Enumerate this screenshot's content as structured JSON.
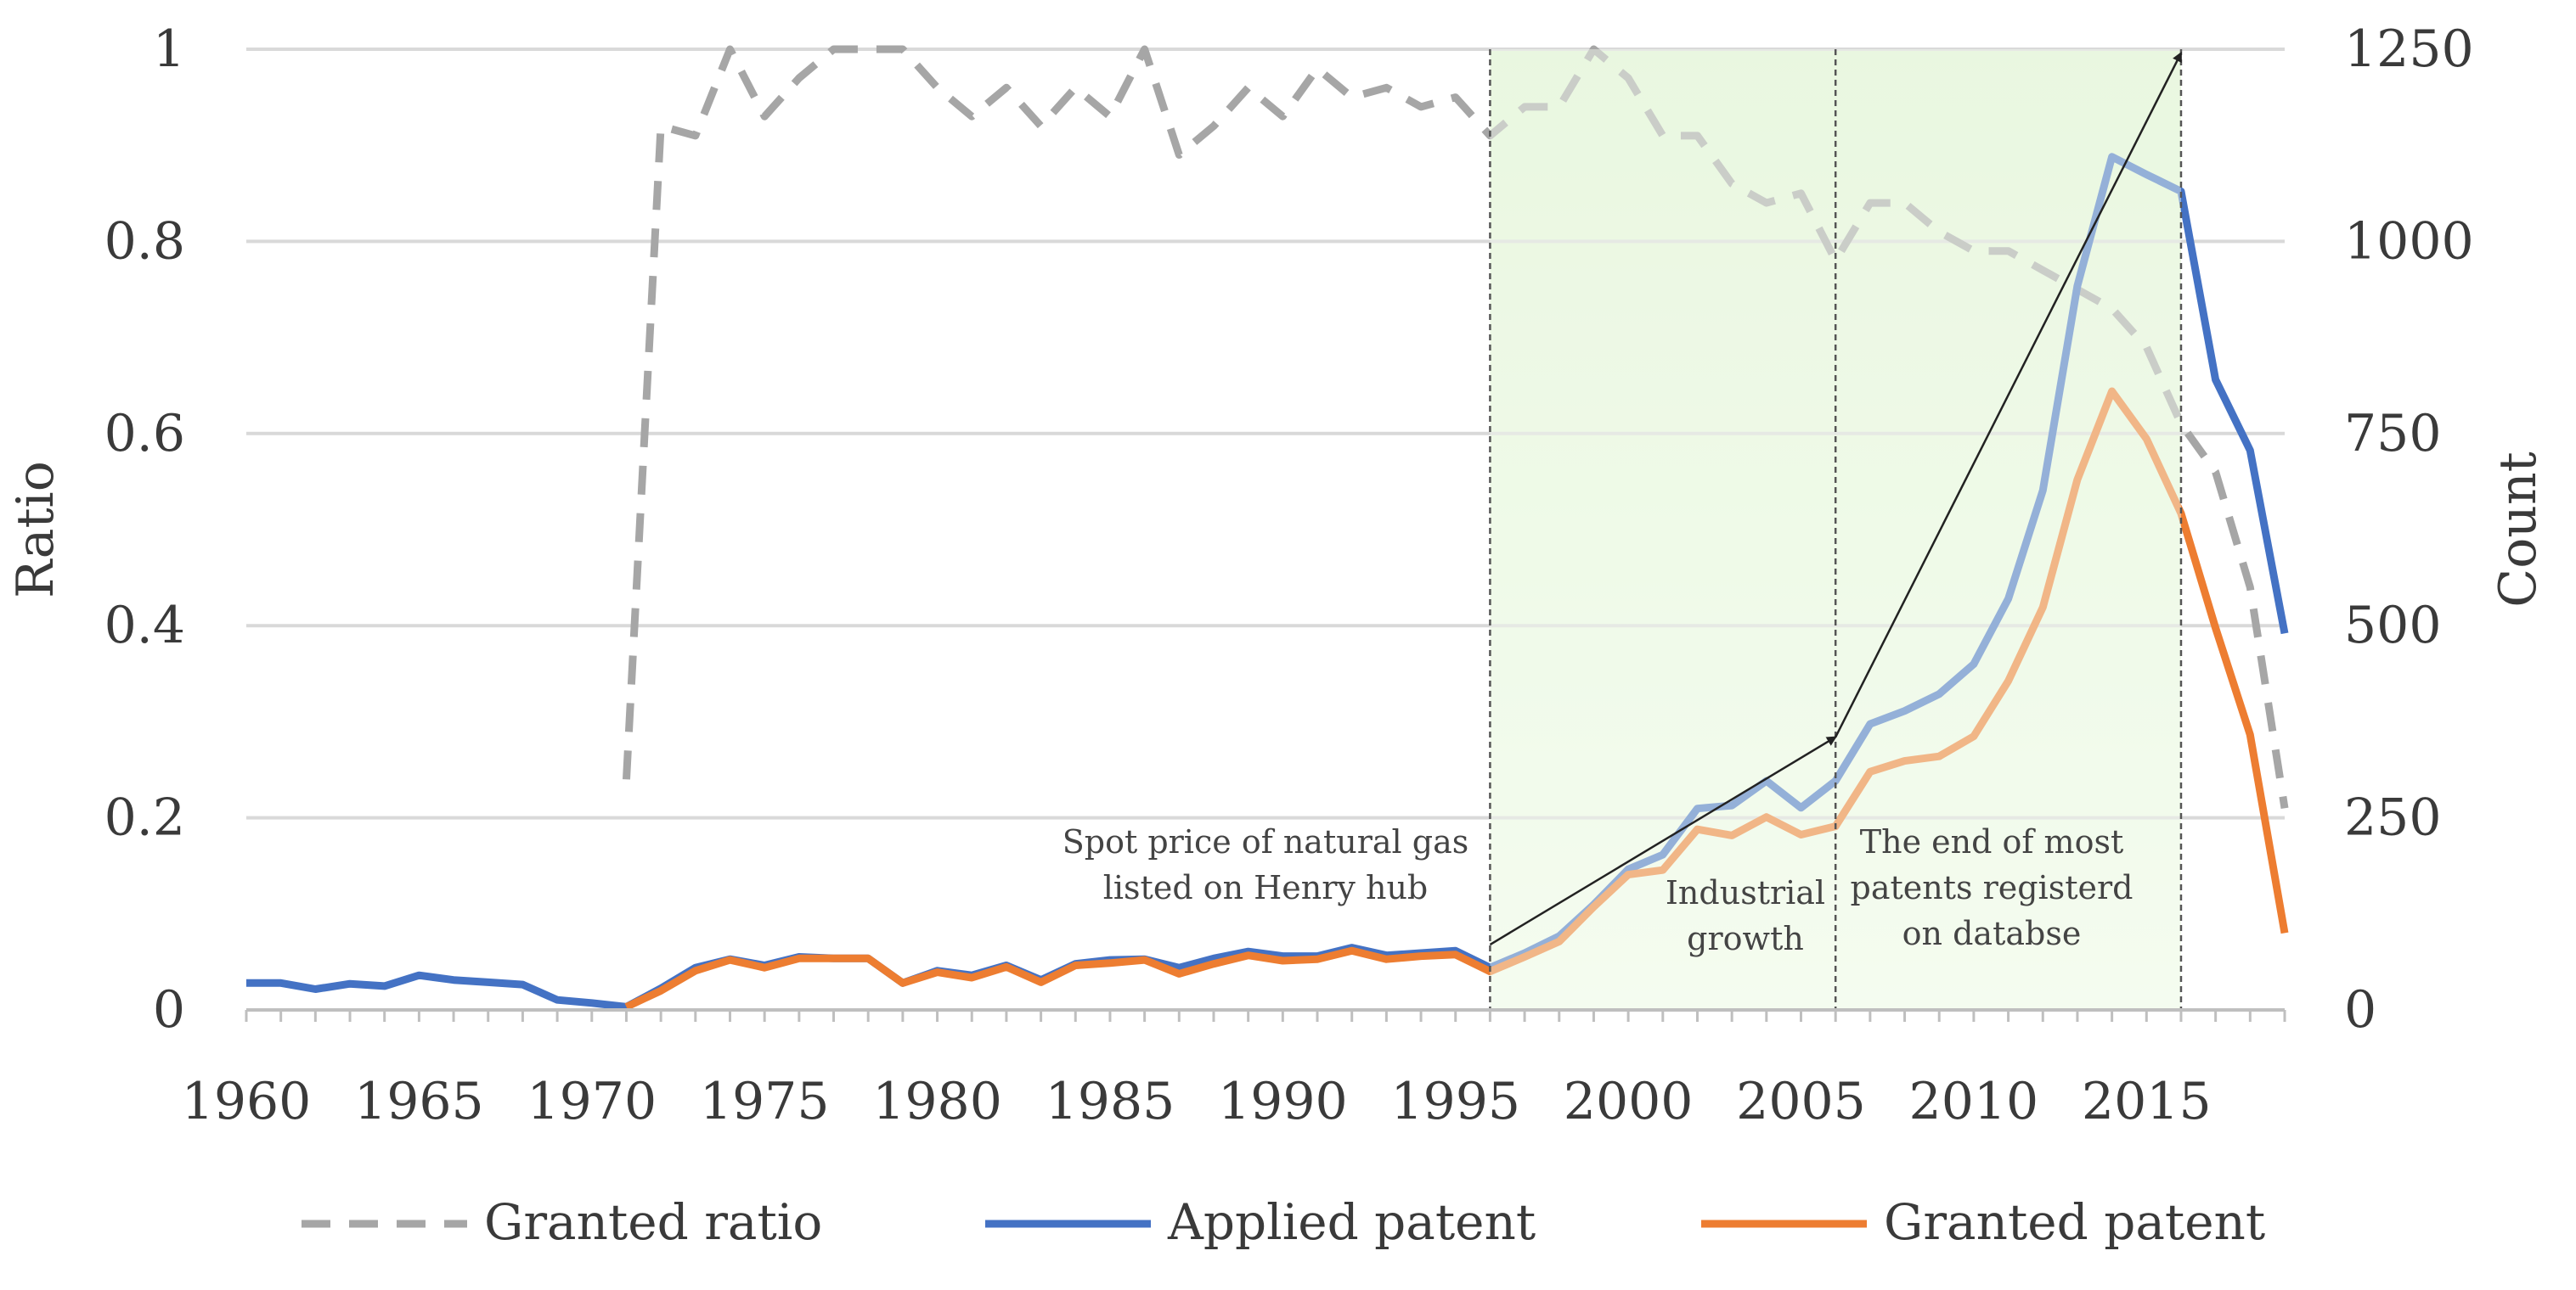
{
  "chart_data": {
    "type": "line",
    "xlabel": "",
    "ylabel_left": "Ratio",
    "ylabel_right": "Count",
    "xlim": [
      1960,
      2019
    ],
    "ylim_left": [
      0,
      1
    ],
    "ylim_right": [
      0,
      1250
    ],
    "x_ticks": [
      1960,
      1965,
      1970,
      1975,
      1980,
      1985,
      1990,
      1995,
      2000,
      2005,
      2010,
      2015
    ],
    "y_left_ticks": [
      "0",
      "0.2",
      "0.4",
      "0.6",
      "0.8",
      "1"
    ],
    "y_left_tick_values": [
      0,
      0.2,
      0.4,
      0.6,
      0.8,
      1
    ],
    "y_right_ticks": [
      "0",
      "250",
      "500",
      "750",
      "1000",
      "1250"
    ],
    "y_right_tick_values": [
      0,
      250,
      500,
      750,
      1000,
      1250
    ],
    "grid": true,
    "legend_position": "bottom",
    "series": [
      {
        "name": "Granted ratio",
        "axis": "left",
        "style": "dashed",
        "color": "#a6a6a6",
        "x": [
          1971,
          1972,
          1973,
          1974,
          1975,
          1976,
          1977,
          1978,
          1979,
          1980,
          1981,
          1982,
          1983,
          1984,
          1985,
          1986,
          1987,
          1988,
          1989,
          1990,
          1991,
          1992,
          1993,
          1994,
          1995,
          1996,
          1997,
          1998,
          1999,
          2000,
          2001,
          2002,
          2003,
          2004,
          2005,
          2006,
          2007,
          2008,
          2009,
          2010,
          2011,
          2012,
          2013,
          2014,
          2015,
          2016,
          2017,
          2018,
          2019
        ],
        "values": [
          0.24,
          0.92,
          0.91,
          1.0,
          0.93,
          0.97,
          1.0,
          1.0,
          1.0,
          0.96,
          0.93,
          0.96,
          0.92,
          0.96,
          0.93,
          1.0,
          0.89,
          0.92,
          0.96,
          0.93,
          0.98,
          0.95,
          0.96,
          0.94,
          0.95,
          0.91,
          0.94,
          0.94,
          1.0,
          0.97,
          0.91,
          0.91,
          0.86,
          0.84,
          0.85,
          0.78,
          0.84,
          0.84,
          0.81,
          0.79,
          0.79,
          0.77,
          0.75,
          0.73,
          0.69,
          0.61,
          0.56,
          0.44,
          0.21
        ]
      },
      {
        "name": "Applied patent",
        "axis": "right",
        "color": "#4472c4",
        "x": [
          1960,
          1961,
          1962,
          1963,
          1964,
          1965,
          1966,
          1967,
          1968,
          1969,
          1970,
          1971,
          1972,
          1973,
          1974,
          1975,
          1976,
          1977,
          1978,
          1979,
          1980,
          1981,
          1982,
          1983,
          1984,
          1985,
          1986,
          1987,
          1988,
          1989,
          1990,
          1991,
          1992,
          1993,
          1994,
          1995,
          1996,
          1997,
          1998,
          1999,
          2000,
          2001,
          2002,
          2003,
          2004,
          2005,
          2006,
          2007,
          2008,
          2009,
          2010,
          2011,
          2012,
          2013,
          2014,
          2015,
          2016,
          2017,
          2018,
          2019
        ],
        "values": [
          35,
          35,
          27,
          34,
          31,
          45,
          39,
          36,
          33,
          13,
          9,
          4,
          28,
          55,
          66,
          58,
          69,
          67,
          67,
          35,
          51,
          45,
          58,
          39,
          60,
          65,
          66,
          55,
          67,
          76,
          70,
          70,
          81,
          71,
          74,
          77,
          55,
          74,
          96,
          137,
          183,
          202,
          262,
          266,
          298,
          263,
          298,
          372,
          389,
          411,
          450,
          535,
          676,
          942,
          1110,
          1087,
          1065,
          820,
          728,
          490
        ]
      },
      {
        "name": "Granted patent",
        "axis": "right",
        "color": "#ed7d31",
        "x": [
          1971,
          1972,
          1973,
          1974,
          1975,
          1976,
          1977,
          1978,
          1979,
          1980,
          1981,
          1982,
          1983,
          1984,
          1985,
          1986,
          1987,
          1988,
          1989,
          1990,
          1991,
          1992,
          1993,
          1994,
          1995,
          1996,
          1997,
          1998,
          1999,
          2000,
          2001,
          2002,
          2003,
          2004,
          2005,
          2006,
          2007,
          2008,
          2009,
          2010,
          2011,
          2012,
          2013,
          2014,
          2015,
          2016,
          2017,
          2018,
          2019
        ],
        "values": [
          4,
          25,
          51,
          65,
          55,
          67,
          67,
          67,
          35,
          49,
          42,
          56,
          36,
          58,
          61,
          65,
          47,
          60,
          71,
          64,
          66,
          77,
          66,
          70,
          72,
          50,
          69,
          89,
          134,
          176,
          182,
          235,
          227,
          251,
          228,
          239,
          310,
          324,
          330,
          356,
          428,
          524,
          690,
          805,
          743,
          646,
          497,
          358,
          100
        ]
      }
    ],
    "annotations": {
      "spot_price": [
        "Spot price of natural gas",
        "listed on Henry hub"
      ],
      "industrial": [
        "Industrial",
        "growth"
      ],
      "end_patents": [
        "The end of most",
        "patents registerd",
        "on databse"
      ]
    },
    "shaded_region": [
      1996,
      2016
    ]
  }
}
